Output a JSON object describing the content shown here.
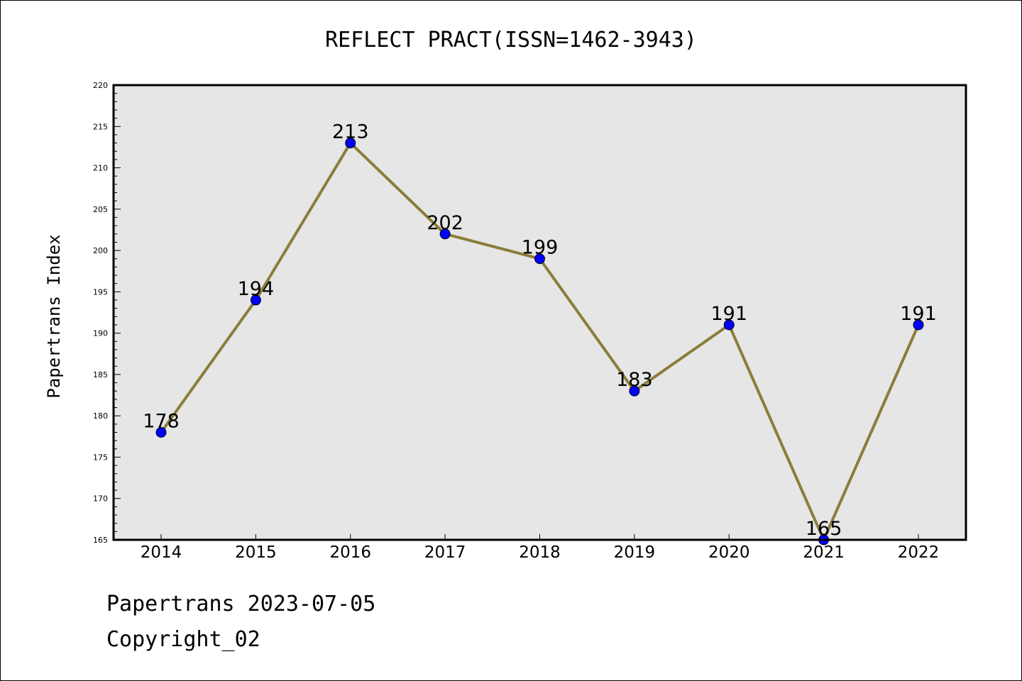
{
  "chart_data": {
    "type": "line",
    "title": "REFLECT PRACT(ISSN=1462-3943)",
    "ylabel": "Papertrans Index",
    "xlabel": "",
    "categories": [
      "2014",
      "2015",
      "2016",
      "2017",
      "2018",
      "2019",
      "2020",
      "2021",
      "2022"
    ],
    "series": [
      {
        "values": [
          178,
          194,
          213,
          202,
          199,
          183,
          191,
          165,
          191
        ]
      }
    ],
    "data_labels": [
      "178",
      "194",
      "213",
      "202",
      "199",
      "183",
      "191",
      "165",
      "191"
    ],
    "ylim": [
      165,
      220
    ],
    "yticks": [
      "165",
      "170",
      "175",
      "180",
      "185",
      "190",
      "195",
      "200",
      "205",
      "210",
      "215",
      "220"
    ],
    "ytick_values": [
      165,
      170,
      175,
      180,
      185,
      190,
      195,
      200,
      205,
      210,
      215,
      220
    ],
    "grid": false,
    "legend": "none",
    "colors": {
      "line": "#8b7d3a",
      "marker": "#0000ff",
      "plot_background": "#e6e6e6"
    }
  },
  "footer": {
    "line1": "Papertrans 2023-07-05",
    "line2": "Copyright_02"
  }
}
